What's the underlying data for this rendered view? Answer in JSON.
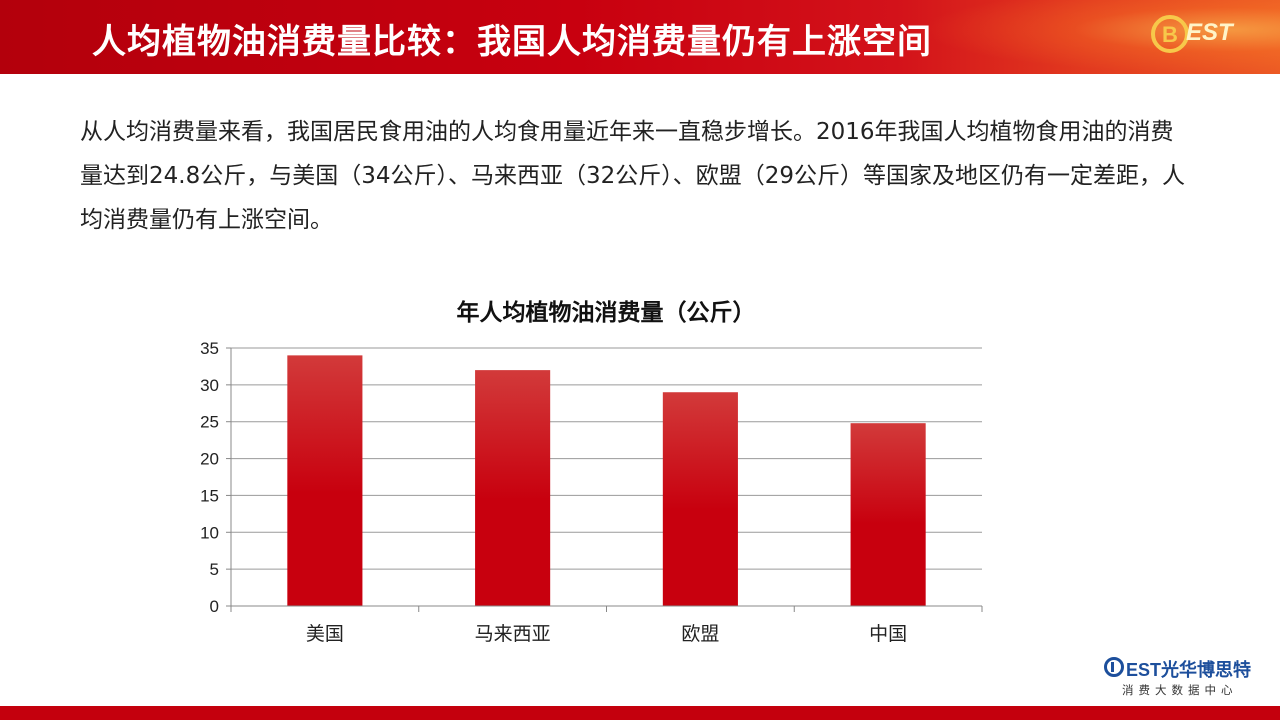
{
  "header": {
    "title": "人均植物油消费量比较：我国人均消费量仍有上涨空间",
    "logo_text": "BEST"
  },
  "intro": {
    "text": "从人均消费量来看，我国居民食用油的人均食用量近年来一直稳步增长。2016年我国人均植物食用油的消费量达到24.8公斤，与美国（34公斤）、马来西亚（32公斤）、欧盟（29公斤）等国家及地区仍有一定差距，人均消费量仍有上涨空间。"
  },
  "chart_data": {
    "type": "bar",
    "title": "年人均植物油消费量（公斤）",
    "categories": [
      "美国",
      "马来西亚",
      "欧盟",
      "中国"
    ],
    "values": [
      34,
      32,
      29,
      24.8
    ],
    "ylim": [
      0,
      35
    ],
    "yticks": [
      0,
      5,
      10,
      15,
      20,
      25,
      30,
      35
    ],
    "grid": true,
    "legend": "none",
    "bar_color": "#c8000e"
  },
  "footer": {
    "brand": "EST光华博思特",
    "subtitle": "消费大数据中心"
  },
  "colors": {
    "accent": "#c4000d",
    "bar": "#c8000e"
  }
}
